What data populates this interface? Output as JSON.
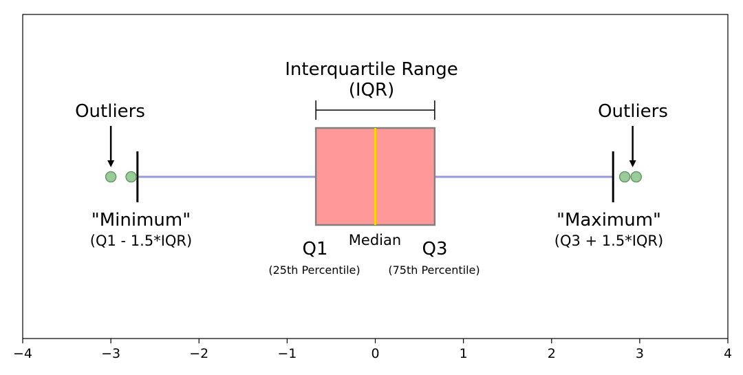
{
  "chart_data": {
    "type": "boxplot",
    "xlim": [
      -4,
      4
    ],
    "x_ticks": [
      -4,
      -3,
      -2,
      -1,
      0,
      1,
      2,
      3,
      4
    ],
    "x_tick_labels": [
      "−4",
      "−3",
      "−2",
      "−1",
      "0",
      "1",
      "2",
      "3",
      "4"
    ],
    "grid": false,
    "box": {
      "q1": -0.674,
      "median": 0,
      "q3": 0.674,
      "whisker_low": -2.698,
      "whisker_high": 2.698
    },
    "outliers": [
      -3.0,
      -2.77,
      2.83,
      2.96
    ],
    "annotations": {
      "iqr_title": "Interquartile Range",
      "iqr_sub": "(IQR)",
      "outliers_left": "Outliers",
      "outliers_right": "Outliers",
      "min_title": "\"Minimum\"",
      "min_sub": "(Q1 - 1.5*IQR)",
      "max_title": "\"Maximum\"",
      "max_sub": "(Q3 + 1.5*IQR)",
      "q1_label": "Q1",
      "q3_label": "Q3",
      "median_label": "Median",
      "q1_sub": "(25th Percentile)",
      "q3_sub": "(75th Percentile)"
    },
    "colors": {
      "box_fill": "#ff9999",
      "box_edge": "#808080",
      "median": "#ffd700",
      "whisker_line": "#9999dd",
      "outlier_fill": "#99cc99",
      "outlier_edge": "#669966"
    }
  }
}
